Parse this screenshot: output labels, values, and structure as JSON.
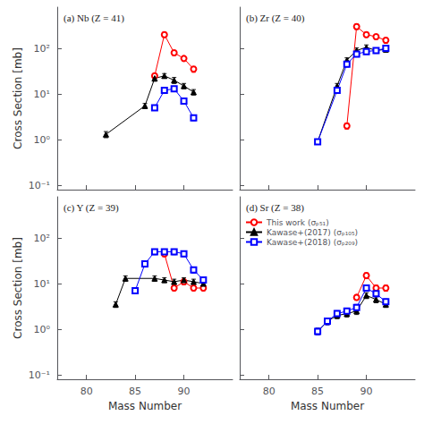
{
  "chart_data": [
    {
      "type": "line",
      "annotation": "(a) Nb (Z = 41)",
      "ylabel": "Cross Section [mb]",
      "log": "y",
      "grid": false,
      "tick_labels": "y",
      "xlim": [
        77,
        95
      ],
      "xticks": [
        80,
        85,
        90
      ],
      "ylim": [
        0.08,
        800
      ],
      "yticks": [
        {
          "value": 0.1,
          "label": "10⁻¹"
        },
        {
          "value": 1,
          "label": "10⁰"
        },
        {
          "value": 10,
          "label": "10¹"
        },
        {
          "value": 100,
          "label": "10²"
        }
      ],
      "series": [
        {
          "color": "red",
          "marker": "open circle",
          "x": [
            87,
            88,
            89,
            90,
            91
          ],
          "values": [
            25,
            200,
            80,
            60,
            35
          ],
          "yerr": [
            3,
            25,
            10,
            7,
            5
          ]
        },
        {
          "color": "black",
          "marker": "triangle",
          "x": [
            82,
            86,
            87,
            88,
            89,
            90,
            91
          ],
          "values": [
            1.3,
            5.5,
            22,
            25,
            20,
            15,
            11
          ],
          "yerr": [
            0.2,
            0.7,
            3,
            3,
            3,
            2,
            1.5
          ]
        },
        {
          "color": "blue",
          "marker": "open square",
          "x": [
            87,
            88,
            89,
            90,
            91
          ],
          "values": [
            5,
            12,
            13,
            7,
            3
          ],
          "yerr": [
            0.6,
            1.5,
            1.5,
            0.8,
            0.4
          ]
        }
      ]
    },
    {
      "type": "line",
      "annotation": "(b) Zr (Z = 40)",
      "log": "y",
      "grid": false,
      "tick_labels": false,
      "xlim": [
        77,
        95
      ],
      "xticks": [
        80,
        85,
        90
      ],
      "ylim": [
        0.08,
        800
      ],
      "yticks": [
        {
          "value": 0.1,
          "label": "10⁻¹"
        },
        {
          "value": 1,
          "label": "10⁰"
        },
        {
          "value": 10,
          "label": "10¹"
        },
        {
          "value": 100,
          "label": "10²"
        }
      ],
      "series": [
        {
          "color": "red",
          "marker": "open circle",
          "x": [
            88,
            89,
            90,
            91,
            92
          ],
          "values": [
            2.0,
            300,
            200,
            180,
            150
          ],
          "yerr": [
            0.3,
            40,
            25,
            22,
            20
          ]
        },
        {
          "color": "black",
          "marker": "triangle",
          "x": [
            85,
            87,
            88,
            89,
            90,
            91,
            92
          ],
          "values": [
            0.9,
            15,
            55,
            90,
            105,
            90,
            95
          ],
          "yerr": [
            0.1,
            2,
            7,
            12,
            14,
            12,
            13
          ]
        },
        {
          "color": "blue",
          "marker": "open square",
          "x": [
            85,
            87,
            88,
            89,
            90,
            91,
            92
          ],
          "values": [
            0.9,
            12,
            45,
            75,
            85,
            90,
            100
          ],
          "yerr": [
            0.1,
            1.5,
            6,
            10,
            11,
            12,
            13
          ]
        }
      ]
    },
    {
      "type": "line",
      "annotation": "(c) Y (Z = 39)",
      "ylabel": "Cross Section [mb]",
      "xlabel": "Mass Number",
      "log": "y",
      "grid": false,
      "xlim": [
        77,
        95
      ],
      "xticks": [
        80,
        85,
        90
      ],
      "ylim": [
        0.08,
        800
      ],
      "yticks": [
        {
          "value": 0.1,
          "label": "10⁻¹"
        },
        {
          "value": 1,
          "label": "10⁰"
        },
        {
          "value": 10,
          "label": "10¹"
        },
        {
          "value": 100,
          "label": "10²"
        }
      ],
      "series": [
        {
          "color": "red",
          "marker": "open circle",
          "x": [
            88,
            89,
            90,
            91,
            92
          ],
          "values": [
            45,
            8,
            11,
            8,
            8
          ],
          "yerr": [
            6,
            1,
            1.5,
            1,
            1
          ]
        },
        {
          "color": "black",
          "marker": "triangle",
          "x": [
            83,
            84,
            87,
            88,
            89,
            90,
            91,
            92
          ],
          "values": [
            3.5,
            13,
            13,
            12,
            11,
            12,
            11,
            10
          ],
          "yerr": [
            0.5,
            1.8,
            1.8,
            1.5,
            1.5,
            1.5,
            1.5,
            1.5
          ]
        },
        {
          "color": "blue",
          "marker": "open square",
          "x": [
            85,
            86,
            87,
            88,
            89,
            90,
            91,
            92
          ],
          "values": [
            7,
            27,
            50,
            50,
            50,
            45,
            20,
            12
          ],
          "yerr": [
            1,
            4,
            7,
            7,
            7,
            6,
            3,
            1.8
          ]
        }
      ]
    },
    {
      "type": "line",
      "annotation": "(d) Sr (Z = 38)",
      "xlabel": "Mass Number",
      "log": "y",
      "grid": false,
      "tick_labels": "x",
      "legend": "upper left",
      "xlim": [
        77,
        95
      ],
      "xticks": [
        80,
        85,
        90
      ],
      "ylim": [
        0.08,
        800
      ],
      "yticks": [
        {
          "value": 0.1,
          "label": "10⁻¹"
        },
        {
          "value": 1,
          "label": "10⁰"
        },
        {
          "value": 10,
          "label": "10¹"
        },
        {
          "value": 100,
          "label": "10²"
        }
      ],
      "series": [
        {
          "name": "This work (σₚ₅₁)",
          "color": "red",
          "marker": "open circle",
          "x": [
            89,
            90,
            91,
            92
          ],
          "values": [
            5,
            15,
            8,
            8
          ],
          "yerr": [
            0.7,
            2.2,
            1.2,
            1.2
          ]
        },
        {
          "name": "Kawase+(2017) (σₚ₁₀₅)",
          "color": "black",
          "marker": "triangle",
          "x": [
            85,
            86,
            87,
            88,
            89,
            90,
            91,
            92
          ],
          "values": [
            0.9,
            1.5,
            2.0,
            2.2,
            2.5,
            5.5,
            4.5,
            3.5
          ],
          "yerr": [
            0.15,
            0.25,
            0.3,
            0.35,
            0.4,
            0.8,
            0.7,
            0.5
          ]
        },
        {
          "name": "Kawase+(2018) (σₚ₂₀₉)",
          "color": "blue",
          "marker": "open square",
          "x": [
            85,
            86,
            87,
            88,
            89,
            90,
            91,
            92
          ],
          "values": [
            0.9,
            1.5,
            2.2,
            2.5,
            3.0,
            8,
            6,
            4
          ],
          "yerr": [
            0.15,
            0.25,
            0.35,
            0.4,
            0.5,
            1.2,
            0.9,
            0.6
          ]
        }
      ]
    }
  ]
}
